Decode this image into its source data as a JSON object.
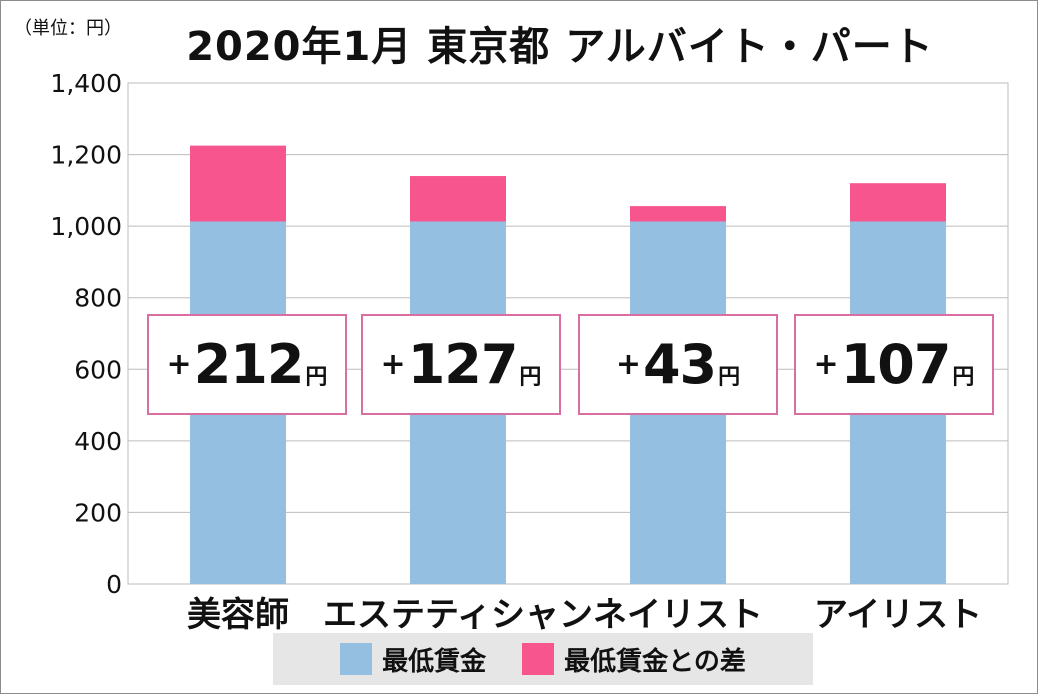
{
  "header": {
    "unit": "（単位：円）",
    "title": "2020年1月 東京都 アルバイト・パート"
  },
  "colors": {
    "base": "#95bfe0",
    "diff": "#f6558d",
    "box_border": "#d96ea0",
    "grid": "#bdbdbd"
  },
  "chart_data": {
    "type": "bar",
    "stacked": true,
    "title": "2020年1月 東京都 アルバイト・パート",
    "unit_label": "（単位：円）",
    "categories": [
      "美容師",
      "エステティシャン",
      "ネイリスト",
      "アイリスト"
    ],
    "y_ticks": [
      "0",
      "200",
      "400",
      "600",
      "800",
      "1,000",
      "1,200",
      "1,400"
    ],
    "ylim": [
      0,
      1400
    ],
    "series": [
      {
        "name": "最低賃金",
        "values": [
          1013,
          1013,
          1013,
          1013
        ]
      },
      {
        "name": "最低賃金との差",
        "values": [
          212,
          127,
          43,
          107
        ]
      }
    ],
    "data_labels": [
      {
        "prefix": "+",
        "value": "212",
        "suffix": "円"
      },
      {
        "prefix": "+",
        "value": "127",
        "suffix": "円"
      },
      {
        "prefix": "+",
        "value": "43",
        "suffix": "円"
      },
      {
        "prefix": "+",
        "value": "107",
        "suffix": "円"
      }
    ],
    "legend": [
      "最低賃金",
      "最低賃金との差"
    ],
    "legend_position": "bottom",
    "grid": true
  }
}
